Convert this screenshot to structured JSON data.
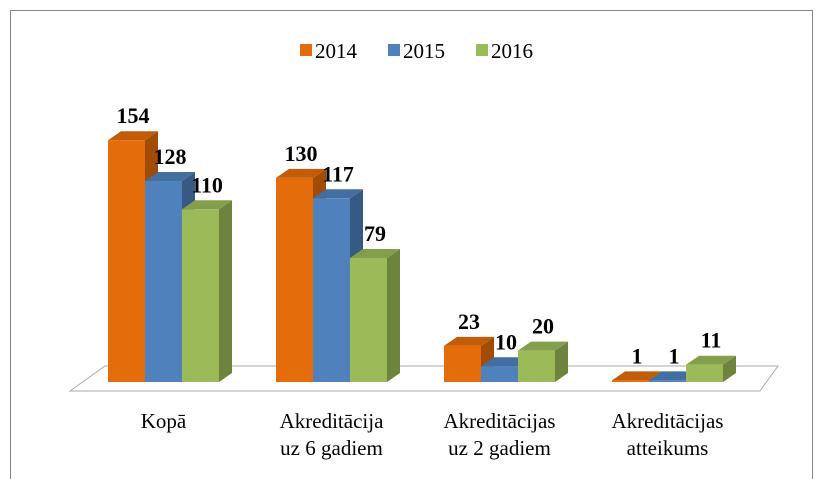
{
  "chart_data": {
    "type": "bar3d",
    "categories": [
      "Kopā",
      "Akreditācija uz 6 gadiem",
      "Akreditācijas uz 2 gadiem",
      "Akreditācijas atteikums"
    ],
    "series": [
      {
        "name": "2014",
        "color": "#e46c0a",
        "values": [
          154,
          130,
          23,
          1
        ]
      },
      {
        "name": "2015",
        "color": "#4f81bd",
        "values": [
          128,
          117,
          10,
          1
        ]
      },
      {
        "name": "2016",
        "color": "#9bbb59",
        "values": [
          110,
          79,
          20,
          11
        ]
      }
    ],
    "legend": "top"
  }
}
